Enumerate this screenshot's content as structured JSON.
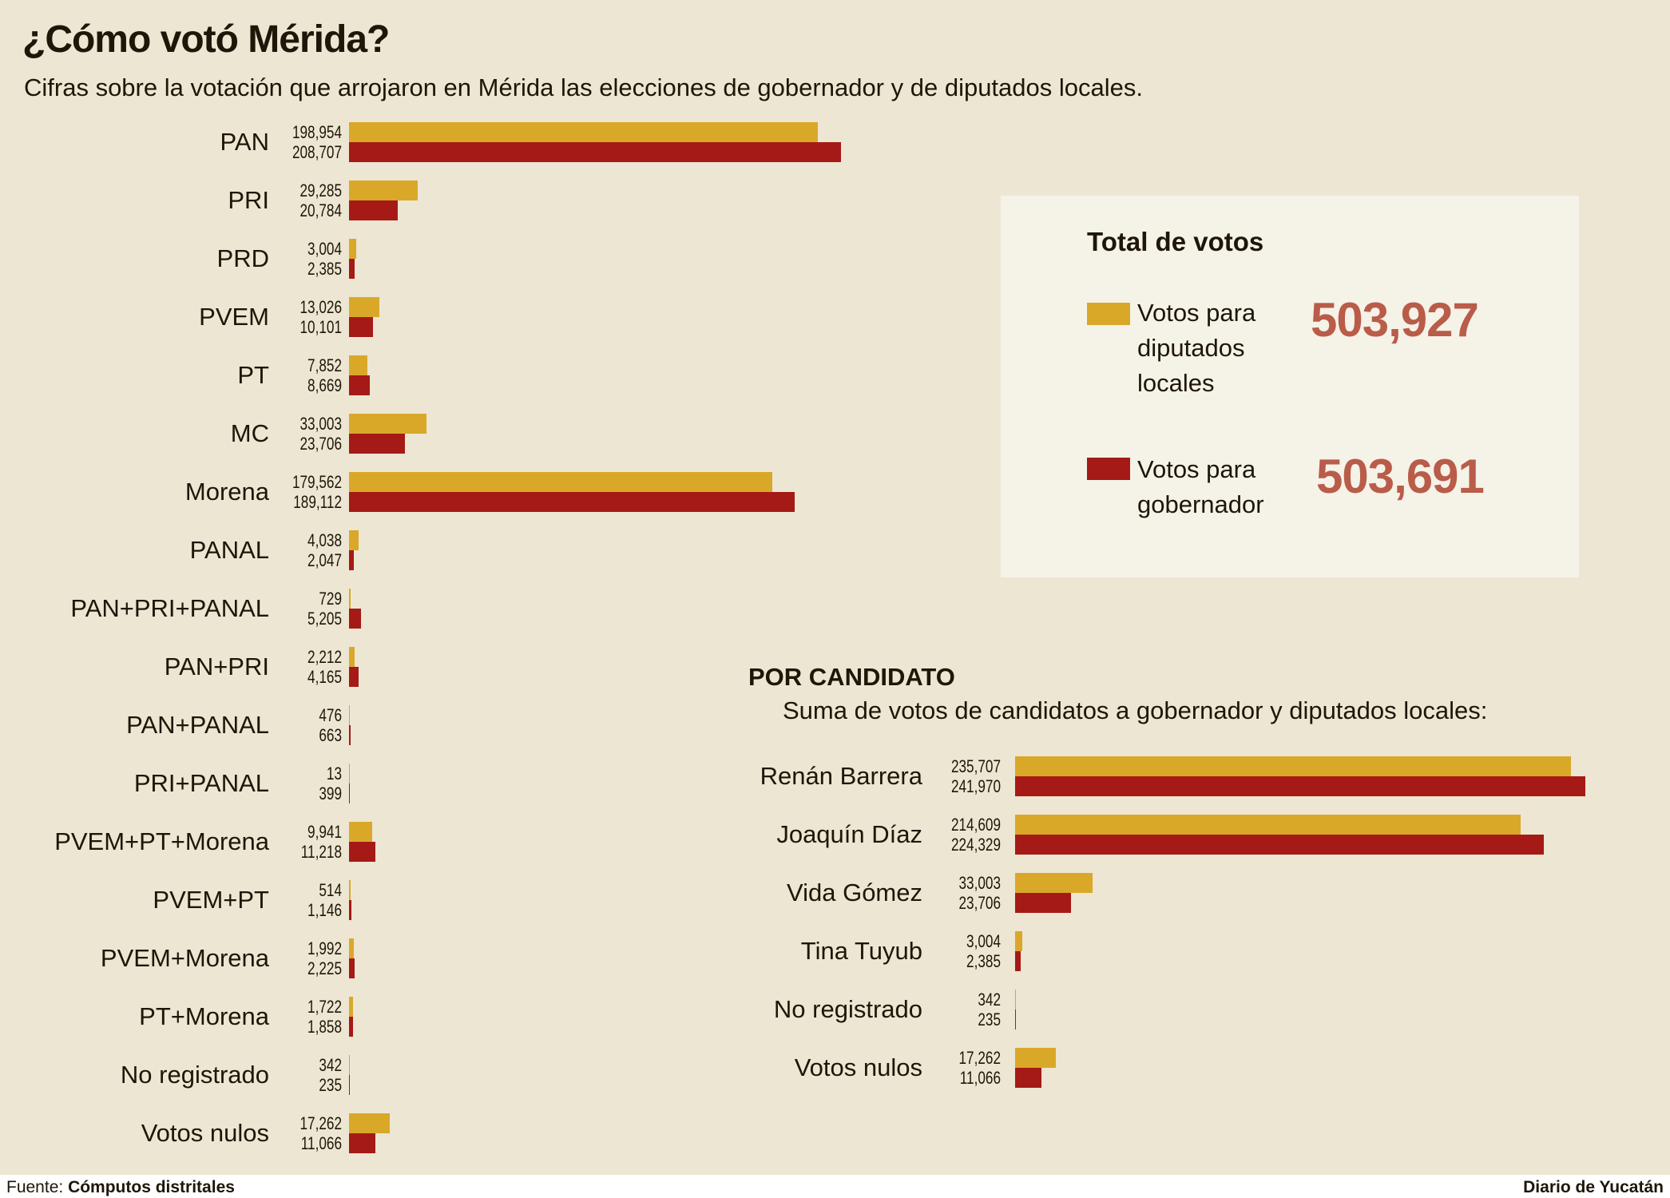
{
  "title": "¿Cómo votó Mérida?",
  "subtitle": "Cifras sobre la votación que arrojaron en Mérida las elecciones de gobernador y de diputados locales.",
  "colors": {
    "diputados": "#daa828",
    "gobernador": "#a51a16",
    "total_number": "#b95c49",
    "background": "#ece6d3"
  },
  "totals": {
    "title": "Total de votos",
    "items": [
      {
        "label_lines": [
          "Votos para",
          "diputados",
          "locales"
        ],
        "value": "503,927",
        "color": "#daa828"
      },
      {
        "label_lines": [
          "Votos para",
          "gobernador"
        ],
        "value": "503,691",
        "color": "#a51a16"
      }
    ]
  },
  "chart_data": [
    {
      "type": "bar",
      "orientation": "horizontal",
      "categories": [
        "PAN",
        "PRI",
        "PRD",
        "PVEM",
        "PT",
        "MC",
        "Morena",
        "PANAL",
        "PAN+PRI+PANAL",
        "PAN+PRI",
        "PAN+PANAL",
        "PRI+PANAL",
        "PVEM+PT+Morena",
        "PVEM+PT",
        "PVEM+Morena",
        "PT+Morena",
        "No registrado",
        "Votos nulos"
      ],
      "series": [
        {
          "name": "Votos para diputados locales",
          "values": [
            198954,
            29285,
            3004,
            13026,
            7852,
            33003,
            179562,
            4038,
            729,
            2212,
            476,
            13,
            9941,
            514,
            1992,
            1722,
            342,
            17262
          ],
          "labels": [
            "198,954",
            "29,285",
            "3,004",
            "13,026",
            "7,852",
            "33,003",
            "179,562",
            "4,038",
            "729",
            "2,212",
            "476",
            "13",
            "9,941",
            "514",
            "1,992",
            "1,722",
            "342",
            "17,262"
          ]
        },
        {
          "name": "Votos para gobernador",
          "values": [
            208707,
            20784,
            2385,
            10101,
            8669,
            23706,
            189112,
            2047,
            5205,
            4165,
            663,
            399,
            11218,
            1146,
            2225,
            1858,
            235,
            11066
          ],
          "labels": [
            "208,707",
            "20,784",
            "2,385",
            "10,101",
            "8,669",
            "23,706",
            "189,112",
            "2,047",
            "5,205",
            "4,165",
            "663",
            "399",
            "11,218",
            "1,146",
            "2,225",
            "1,858",
            "235",
            "11,066"
          ]
        }
      ],
      "grid": false
    },
    {
      "type": "bar",
      "orientation": "horizontal",
      "title": "POR CANDIDATO",
      "subtitle": "Suma de votos de candidatos a gobernador y diputados locales:",
      "categories": [
        "Renán Barrera",
        "Joaquín Díaz",
        "Vida Gómez",
        "Tina Tuyub",
        "No registrado",
        "Votos nulos"
      ],
      "series": [
        {
          "name": "Votos para diputados locales",
          "values": [
            235707,
            214609,
            33003,
            3004,
            342,
            17262
          ],
          "labels": [
            "235,707",
            "214,609",
            "33,003",
            "3,004",
            "342",
            "17,262"
          ]
        },
        {
          "name": "Votos para gobernador",
          "values": [
            241970,
            224329,
            23706,
            2385,
            235,
            11066
          ],
          "labels": [
            "241,970",
            "224,329",
            "23,706",
            "2,385",
            "235",
            "11,066"
          ]
        }
      ],
      "grid": false
    }
  ],
  "footer": {
    "source_label": "Fuente:",
    "source": "Cómputos distritales",
    "brand": "Diario de Yucatán"
  }
}
